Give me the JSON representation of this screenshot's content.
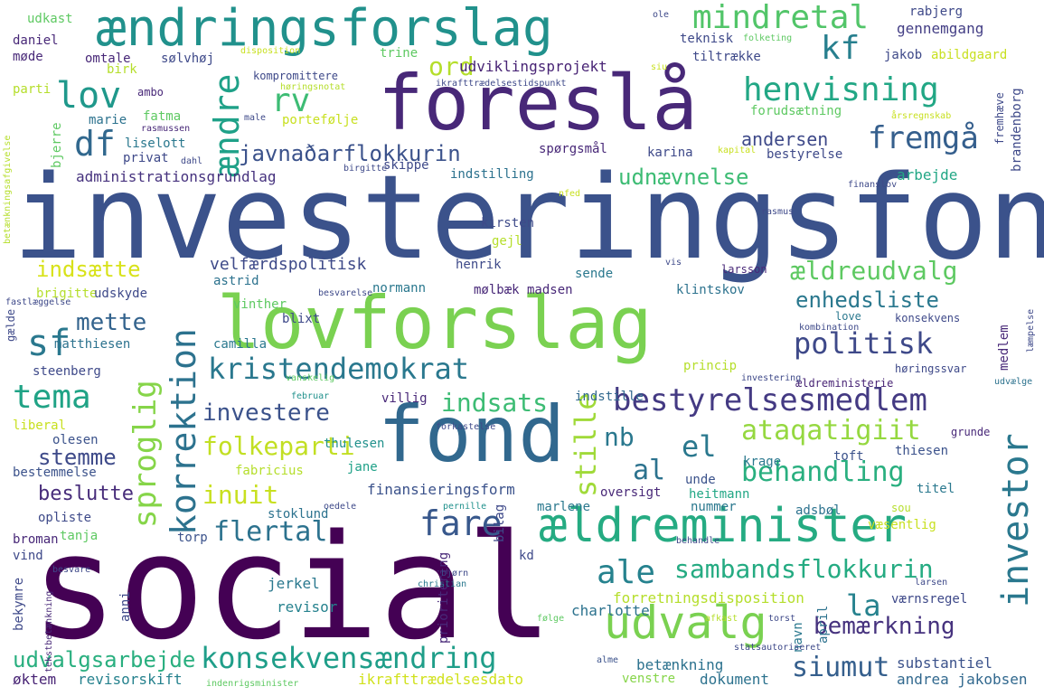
{
  "words": [
    {
      "text": "investeringsfond",
      "color": "#3b528b"
    },
    {
      "text": "social",
      "color": "#440154"
    },
    {
      "text": "lovforslag",
      "color": "#7ad151"
    },
    {
      "text": "fond",
      "color": "#31688e"
    },
    {
      "text": "foreslå",
      "color": "#482878"
    },
    {
      "text": "ændringsforslag",
      "color": "#21918c"
    },
    {
      "text": "ældreminister",
      "color": "#25ab82"
    },
    {
      "text": "udvalg",
      "color": "#7ad151"
    },
    {
      "text": "investor",
      "color": "#2a788e"
    },
    {
      "text": "bestyrelsesmedlem",
      "color": "#443a83"
    },
    {
      "text": "konsekvensændring",
      "color": "#1f9e89"
    },
    {
      "text": "kristendemokrat",
      "color": "#2a788e"
    },
    {
      "text": "korrektion",
      "color": "#2c728e"
    },
    {
      "text": "sproglig",
      "color": "#86d549"
    },
    {
      "text": "ændre",
      "color": "#1fa188"
    },
    {
      "text": "lov",
      "color": "#1f988b"
    },
    {
      "text": "henvisning",
      "color": "#22a785"
    },
    {
      "text": "fremgå",
      "color": "#355f8d"
    },
    {
      "text": "politisk",
      "color": "#3e4989"
    },
    {
      "text": "ataqatigiit",
      "color": "#95d840"
    },
    {
      "text": "behandling",
      "color": "#29af7f"
    },
    {
      "text": "sambandsflokkurin",
      "color": "#25ab82"
    },
    {
      "text": "ale",
      "color": "#26828e"
    },
    {
      "text": "fare",
      "color": "#38588c"
    },
    {
      "text": "flertal",
      "color": "#2c728e"
    },
    {
      "text": "tema",
      "color": "#20a386"
    },
    {
      "text": "mindretal",
      "color": "#52c569"
    },
    {
      "text": "kf",
      "color": "#277f8e"
    },
    {
      "text": "rv",
      "color": "#3dbc74"
    },
    {
      "text": "df",
      "color": "#31688e"
    },
    {
      "text": "sf",
      "color": "#2a788e"
    },
    {
      "text": "mette",
      "color": "#33638d"
    },
    {
      "text": "el",
      "color": "#2a788e"
    },
    {
      "text": "al",
      "color": "#2c728e"
    },
    {
      "text": "nb",
      "color": "#2a788e"
    },
    {
      "text": "la",
      "color": "#26828e"
    },
    {
      "text": "ord",
      "color": "#b5de2b"
    },
    {
      "text": "javnaðarflokkurin",
      "color": "#3b528b"
    },
    {
      "text": "ældreudvalg",
      "color": "#5ec962"
    },
    {
      "text": "enhedsliste",
      "color": "#2a788e"
    },
    {
      "text": "investere",
      "color": "#3b528b"
    },
    {
      "text": "indsats",
      "color": "#3dbc74"
    },
    {
      "text": "folkeparti",
      "color": "#c2df23"
    },
    {
      "text": "stille",
      "color": "#a0da39"
    },
    {
      "text": "stemme",
      "color": "#3e4a89"
    },
    {
      "text": "inuit",
      "color": "#c8e020"
    },
    {
      "text": "siumut",
      "color": "#355f8d"
    },
    {
      "text": "bemærkning",
      "color": "#46327e"
    },
    {
      "text": "udnævnelse",
      "color": "#3dbc74"
    },
    {
      "text": "andersen",
      "color": "#3e4989"
    },
    {
      "text": "indsætte",
      "color": "#d8e219"
    },
    {
      "text": "beslutte",
      "color": "#472c7a"
    },
    {
      "text": "udvalgsarbejde",
      "color": "#29af7f"
    },
    {
      "text": "gennemgang",
      "color": "#433e85"
    },
    {
      "text": "arbejde",
      "color": "#22a785"
    },
    {
      "text": "velfærdspolitisk",
      "color": "#3e4a89"
    },
    {
      "text": "udviklingsprojekt",
      "color": "#482475"
    },
    {
      "text": "administrationsgrundlag",
      "color": "#46327e"
    },
    {
      "text": "revisorskift",
      "color": "#26828e"
    },
    {
      "text": "betænkning",
      "color": "#2c728e"
    },
    {
      "text": "øktem",
      "color": "#482475"
    },
    {
      "text": "dokument",
      "color": "#2c728e"
    },
    {
      "text": "andrea jakobsen",
      "color": "#31688e"
    },
    {
      "text": "substantiel",
      "color": "#3b528b"
    },
    {
      "text": "ikrafttrædelsesdato",
      "color": "#d0e11c"
    },
    {
      "text": "venstre",
      "color": "#86d549"
    },
    {
      "text": "forretningsdisposition",
      "color": "#b5de2b"
    },
    {
      "text": "revisor",
      "color": "#26828e"
    },
    {
      "text": "charlotte",
      "color": "#2c728e"
    },
    {
      "text": "værnsregel",
      "color": "#3e4989"
    },
    {
      "text": "jerkel",
      "color": "#2a788e"
    },
    {
      "text": "finansieringsform",
      "color": "#3b528b"
    },
    {
      "text": "oversigt",
      "color": "#482878"
    },
    {
      "text": "heitmann",
      "color": "#22a785"
    },
    {
      "text": "nummer",
      "color": "#2a788e"
    },
    {
      "text": "marlene",
      "color": "#2a788e"
    },
    {
      "text": "fabricius",
      "color": "#b5de2b"
    },
    {
      "text": "jane",
      "color": "#1fa188"
    },
    {
      "text": "krage",
      "color": "#2a788e"
    },
    {
      "text": "unde",
      "color": "#3b528b"
    },
    {
      "text": "thulesen",
      "color": "#21918c"
    },
    {
      "text": "olesen",
      "color": "#3b528b"
    },
    {
      "text": "liberal",
      "color": "#c8e020"
    },
    {
      "text": "bestemmelse",
      "color": "#3b528b"
    },
    {
      "text": "opliste",
      "color": "#3e4a89"
    },
    {
      "text": "broman",
      "color": "#482878"
    },
    {
      "text": "tanja",
      "color": "#5ec962"
    },
    {
      "text": "vind",
      "color": "#3e4989"
    },
    {
      "text": "torp",
      "color": "#3b528b"
    },
    {
      "text": "stoklund",
      "color": "#2c728e"
    },
    {
      "text": "steenberg",
      "color": "#3e4989"
    },
    {
      "text": "villig",
      "color": "#482878"
    },
    {
      "text": "matthiesen",
      "color": "#2c728e"
    },
    {
      "text": "camilla",
      "color": "#2a788e"
    },
    {
      "text": "blixt",
      "color": "#3e4989"
    },
    {
      "text": "vinther",
      "color": "#5ec962"
    },
    {
      "text": "astrid",
      "color": "#2c728e"
    },
    {
      "text": "brigitte",
      "color": "#b5de2b"
    },
    {
      "text": "udskyde",
      "color": "#3e4989"
    },
    {
      "text": "normann",
      "color": "#2a788e"
    },
    {
      "text": "mølbæk madsen",
      "color": "#482878"
    },
    {
      "text": "klintskov",
      "color": "#2c728e"
    },
    {
      "text": "love",
      "color": "#2a788e"
    },
    {
      "text": "konsekvens",
      "color": "#3e4989"
    },
    {
      "text": "larsson",
      "color": "#482878"
    },
    {
      "text": "henrik",
      "color": "#3e4a89"
    },
    {
      "text": "sende",
      "color": "#2a788e"
    },
    {
      "text": "kirsten",
      "color": "#3e4a89"
    },
    {
      "text": "gejl",
      "color": "#b5de2b"
    },
    {
      "text": "høringssvar",
      "color": "#3e4989"
    },
    {
      "text": "ældreministerie",
      "color": "#482475"
    },
    {
      "text": "indstille",
      "color": "#31688e"
    },
    {
      "text": "princip",
      "color": "#b5de2b"
    },
    {
      "text": "thiesen",
      "color": "#3b528b"
    },
    {
      "text": "grunde",
      "color": "#482878"
    },
    {
      "text": "toft",
      "color": "#3b528b"
    },
    {
      "text": "titel",
      "color": "#2a788e"
    },
    {
      "text": "væsentlig",
      "color": "#c8e020"
    },
    {
      "text": "adsbøl",
      "color": "#2c728e"
    },
    {
      "text": "sou",
      "color": "#b5de2b"
    },
    {
      "text": "april",
      "color": "#2c728e"
    },
    {
      "text": "navn",
      "color": "#2a788e"
    },
    {
      "text": "torst",
      "color": "#3e4989"
    },
    {
      "text": "afkast",
      "color": "#b5de2b"
    },
    {
      "text": "følge",
      "color": "#5ec962"
    },
    {
      "text": "kd",
      "color": "#3e4989"
    },
    {
      "text": "bilag",
      "color": "#3e4989"
    },
    {
      "text": "prioritering",
      "color": "#482878"
    },
    {
      "text": "christian",
      "color": "#2a788e"
    },
    {
      "text": "bjørn",
      "color": "#3e4989"
    },
    {
      "text": "pernille",
      "color": "#21918c"
    },
    {
      "text": "anni",
      "color": "#3e4989"
    },
    {
      "text": "bekymre",
      "color": "#3e4989"
    },
    {
      "text": "tekstbetænkning",
      "color": "#482878"
    },
    {
      "text": "indenrigsminister",
      "color": "#5ec962"
    },
    {
      "text": "statsautoriseret",
      "color": "#3e4989"
    },
    {
      "text": "alme",
      "color": "#3b528b"
    },
    {
      "text": "larsen",
      "color": "#3e4989"
    },
    {
      "text": "behandle",
      "color": "#3e4989"
    },
    {
      "text": "besvare",
      "color": "#3e4989"
    },
    {
      "text": "forkastelse",
      "color": "#3e4989"
    },
    {
      "text": "februar",
      "color": "#21918c"
    },
    {
      "text": "vanskelig",
      "color": "#5ec962"
    },
    {
      "text": "investering",
      "color": "#3e4989"
    },
    {
      "text": "udvælge",
      "color": "#2c728e"
    },
    {
      "text": "kombination",
      "color": "#3e4989"
    },
    {
      "text": "besvarelse",
      "color": "#3e4989"
    },
    {
      "text": "fastlæggelse",
      "color": "#3e4989"
    },
    {
      "text": "gælde",
      "color": "#3e4989"
    },
    {
      "text": "medlem",
      "color": "#482878"
    },
    {
      "text": "læmpelse",
      "color": "#3e4989"
    },
    {
      "text": "vis",
      "color": "#3e4989"
    },
    {
      "text": "oedele",
      "color": "#3e4989"
    },
    {
      "text": "rasmus",
      "color": "#3e4989"
    },
    {
      "text": "finanslov",
      "color": "#3e4989"
    },
    {
      "text": "nfed",
      "color": "#c8e020"
    },
    {
      "text": "udkast",
      "color": "#5ec962"
    },
    {
      "text": "daniel",
      "color": "#482878"
    },
    {
      "text": "møde",
      "color": "#482878"
    },
    {
      "text": "omtale",
      "color": "#482878"
    },
    {
      "text": "birk",
      "color": "#b5de2b"
    },
    {
      "text": "sølvhøj",
      "color": "#3e4989"
    },
    {
      "text": "disposition",
      "color": "#c8e020"
    },
    {
      "text": "trine",
      "color": "#5ec962"
    },
    {
      "text": "kompromittere",
      "color": "#3e4989"
    },
    {
      "text": "høringsnotat",
      "color": "#b5de2b"
    },
    {
      "text": "ikrafttrædelsestidspunkt",
      "color": "#3e4989"
    },
    {
      "text": "teknisk",
      "color": "#3e4989"
    },
    {
      "text": "folketing",
      "color": "#5ec962"
    },
    {
      "text": "tiltrække",
      "color": "#3e4989"
    },
    {
      "text": "jakob",
      "color": "#3e4989"
    },
    {
      "text": "abildgaard",
      "color": "#c8e020"
    },
    {
      "text": "rabjerg",
      "color": "#3e4989"
    },
    {
      "text": "ole",
      "color": "#3e4989"
    },
    {
      "text": "siu",
      "color": "#c8e020"
    },
    {
      "text": "parti",
      "color": "#b5de2b"
    },
    {
      "text": "ambo",
      "color": "#482878"
    },
    {
      "text": "marie",
      "color": "#2c728e"
    },
    {
      "text": "fatma",
      "color": "#5ec962"
    },
    {
      "text": "rasmussen",
      "color": "#482878"
    },
    {
      "text": "liselott",
      "color": "#2a788e"
    },
    {
      "text": "privat",
      "color": "#3e4989"
    },
    {
      "text": "dahl",
      "color": "#3e4989"
    },
    {
      "text": "bjerre",
      "color": "#5ec962"
    },
    {
      "text": "portefølje",
      "color": "#c8e020"
    },
    {
      "text": "male",
      "color": "#3e4989"
    },
    {
      "text": "spørgsmål",
      "color": "#482878"
    },
    {
      "text": "karina",
      "color": "#3e4989"
    },
    {
      "text": "skippe",
      "color": "#3e4989"
    },
    {
      "text": "indstilling",
      "color": "#2c728e"
    },
    {
      "text": "birgitte",
      "color": "#3e4989"
    },
    {
      "text": "kapital",
      "color": "#c8e020"
    },
    {
      "text": "forudsætning",
      "color": "#5ec962"
    },
    {
      "text": "årsregnskab",
      "color": "#c8e020"
    },
    {
      "text": "fremhæve",
      "color": "#3e4989"
    },
    {
      "text": "brandenborg",
      "color": "#3e4989"
    },
    {
      "text": "bestyrelse",
      "color": "#3e4989"
    },
    {
      "text": "betænkningsafgivelse",
      "color": "#b5de2b"
    }
  ]
}
